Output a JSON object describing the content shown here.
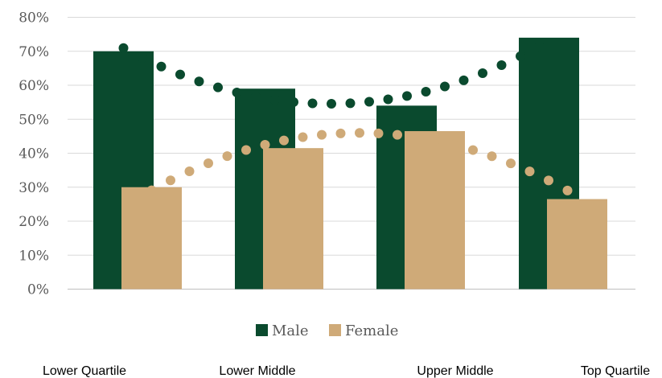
{
  "chart_data": {
    "type": "bar",
    "categories": [
      "Lower Quartile",
      "Lower Middle",
      "Upper Middle",
      "Top Quartile"
    ],
    "series": [
      {
        "name": "Male",
        "values": [
          70,
          59,
          54,
          74
        ],
        "color": "#0a4a2e"
      },
      {
        "name": "Female",
        "values": [
          30,
          41.5,
          46.5,
          26.5
        ],
        "color": "#cfaa78"
      }
    ],
    "trendlines": [
      {
        "series": "Male",
        "style": "dotted"
      },
      {
        "series": "Female",
        "style": "dotted"
      }
    ],
    "yticks": [
      "0%",
      "10%",
      "20%",
      "30%",
      "40%",
      "50%",
      "60%",
      "70%",
      "80%"
    ],
    "ylim": [
      0,
      80
    ],
    "grid": true,
    "legend": {
      "position": "bottom",
      "entries": [
        "Male",
        "Female"
      ]
    }
  }
}
